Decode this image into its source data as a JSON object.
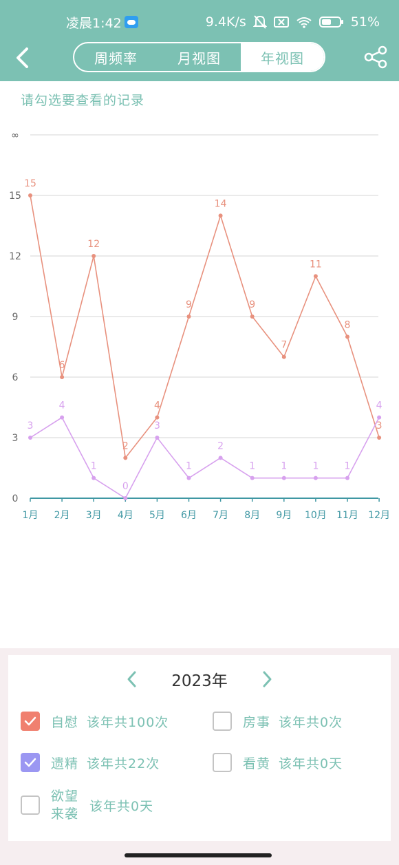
{
  "status_bar": {
    "time": "凌晨1:42",
    "net_speed": "9.4K/s",
    "battery": "51%"
  },
  "header": {
    "tabs": [
      {
        "label": "周频率",
        "active": false
      },
      {
        "label": "月视图",
        "active": false
      },
      {
        "label": "年视图",
        "active": true
      }
    ]
  },
  "hint": "请勾选要查看的记录",
  "chart_data": {
    "type": "line",
    "categories": [
      "1月",
      "2月",
      "3月",
      "4月",
      "5月",
      "6月",
      "7月",
      "8月",
      "9月",
      "10月",
      "11月",
      "12月"
    ],
    "y_ticks": [
      "0",
      "3",
      "6",
      "9",
      "12",
      "15",
      "∞"
    ],
    "ylim": [
      0,
      18
    ],
    "grid": true,
    "series": [
      {
        "name": "自慰",
        "color": "#e8917e",
        "values": [
          15,
          6,
          12,
          2,
          4,
          9,
          14,
          9,
          7,
          11,
          8,
          3
        ]
      },
      {
        "name": "遗精",
        "color": "#d7a1ee",
        "values": [
          3,
          4,
          1,
          0,
          3,
          1,
          2,
          1,
          1,
          1,
          1,
          4
        ]
      }
    ]
  },
  "year": {
    "label": "2023年"
  },
  "options": [
    {
      "name": "自慰",
      "count": "该年共100次",
      "checked": true,
      "color": "#f0806f"
    },
    {
      "name": "房事",
      "count": "该年共0次",
      "checked": false
    },
    {
      "name": "遗精",
      "count": "该年共22次",
      "checked": true,
      "color": "#9b97f2"
    },
    {
      "name": "看黄",
      "count": "该年共0天",
      "checked": false
    },
    {
      "name_line1": "欲望",
      "name_line2": "来袭",
      "count": "该年共0天",
      "checked": false
    }
  ]
}
